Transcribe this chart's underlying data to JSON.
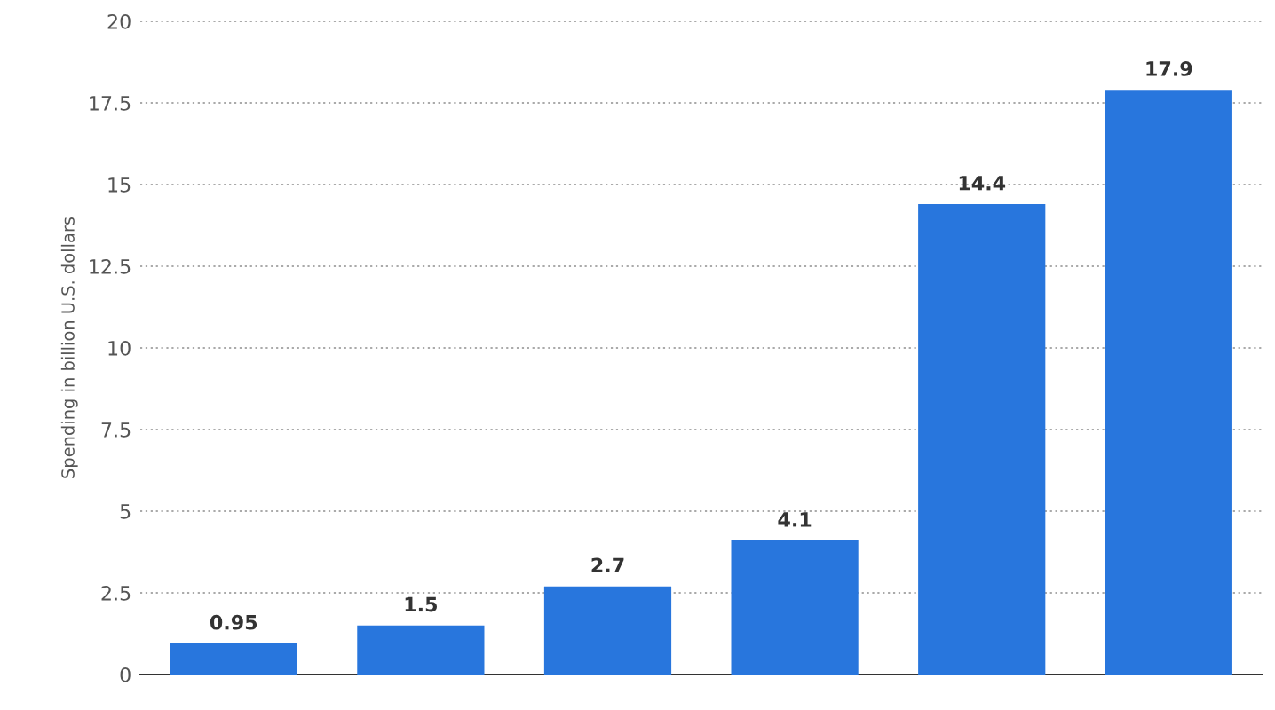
{
  "chart_data": {
    "type": "bar",
    "ylabel": "Spending in billion U.S. dollars",
    "categories": [
      null,
      null,
      null,
      null,
      null,
      null
    ],
    "values": [
      0.95,
      1.5,
      2.7,
      4.1,
      14.4,
      17.9
    ],
    "color": "#2876dd",
    "ylim": [
      0,
      20
    ],
    "yticks": [
      0,
      2.5,
      5,
      7.5,
      10,
      12.5,
      15,
      17.5,
      20
    ],
    "grid": "y",
    "data_labels": true,
    "tick_labels": "y"
  }
}
